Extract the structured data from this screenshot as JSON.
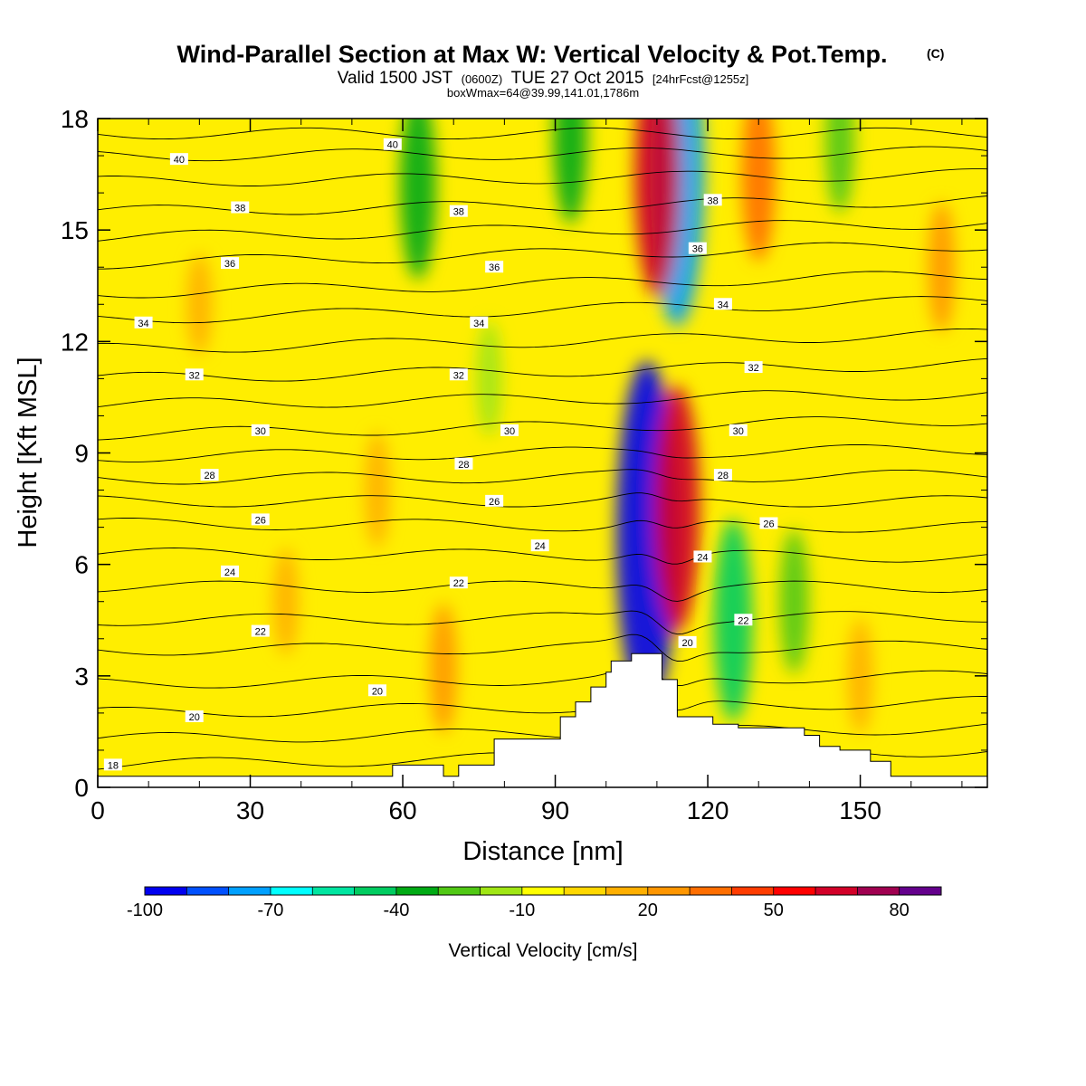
{
  "header": {
    "title": "Wind-Parallel Section at Max W: Vertical Velocity & Pot.Temp.",
    "copyright": "(C)",
    "valid_prefix": "Valid 1500 JST",
    "valid_zulu": "(0600Z)",
    "valid_date": "TUE 27 Oct 2015",
    "forecast": "[24hrFcst@1255z]",
    "box_info": "boxWmax=64@39.99,141.01,1786m"
  },
  "chart_data": {
    "type": "heatmap",
    "title": "Wind-Parallel Section at Max W: Vertical Velocity & Pot.Temp.",
    "xlabel": "Distance [nm]",
    "ylabel": "Height [Kft MSL]",
    "xlim": [
      0,
      175
    ],
    "ylim": [
      0,
      18
    ],
    "x_ticks": [
      0,
      30,
      60,
      90,
      120,
      150
    ],
    "y_ticks": [
      0,
      3,
      6,
      9,
      12,
      15,
      18
    ],
    "x_tick_labels": [
      "0",
      "30",
      "60",
      "90",
      "120",
      "150"
    ],
    "y_tick_labels": [
      "0",
      "3",
      "6",
      "9",
      "12",
      "15",
      "18"
    ],
    "colorbar": {
      "title": "Vertical Velocity [cm/s]",
      "min": -100,
      "max": 90,
      "step": 10,
      "labels": [
        "-100",
        "-70",
        "-40",
        "-10",
        "20",
        "50",
        "80"
      ],
      "label_values": [
        -100,
        -70,
        -40,
        -10,
        20,
        50,
        80
      ],
      "colors": [
        "#0000f0",
        "#0050ff",
        "#00a0ff",
        "#00ffff",
        "#00e5a0",
        "#00cc60",
        "#00aa14",
        "#50c814",
        "#a0e614",
        "#ffff00",
        "#ffd700",
        "#ffaf00",
        "#ff9600",
        "#ff6e00",
        "#ff3c00",
        "#ff0000",
        "#d20028",
        "#a00050",
        "#64008c"
      ]
    },
    "terrain": {
      "x": [
        0,
        58,
        58,
        68,
        68,
        71,
        71,
        78,
        78,
        91,
        91,
        94,
        94,
        97,
        97,
        100,
        100,
        101,
        101,
        105,
        105,
        111,
        111,
        114,
        114,
        121,
        121,
        126,
        126,
        139,
        139,
        142,
        142,
        146,
        146,
        152,
        152,
        156,
        156,
        175
      ],
      "y": [
        0.3,
        0.3,
        0.6,
        0.6,
        0.3,
        0.3,
        0.6,
        0.6,
        1.3,
        1.3,
        1.9,
        1.9,
        2.3,
        2.3,
        2.7,
        2.7,
        3.1,
        3.1,
        3.4,
        3.4,
        3.6,
        3.6,
        2.9,
        2.9,
        1.9,
        1.9,
        1.7,
        1.7,
        1.6,
        1.6,
        1.4,
        1.4,
        1.1,
        1.1,
        1.0,
        1.0,
        0.7,
        0.7,
        0.3,
        0.3
      ]
    },
    "w_features": [
      {
        "x": 108,
        "y": 6.8,
        "w": -95
      },
      {
        "x": 114,
        "y": 7.5,
        "w": 60
      },
      {
        "x": 114,
        "y": 16.5,
        "w": -80
      },
      {
        "x": 110,
        "y": 16.5,
        "w": 60
      },
      {
        "x": 63,
        "y": 16.2,
        "w": -40
      },
      {
        "x": 93,
        "y": 17.5,
        "w": -35
      },
      {
        "x": 125,
        "y": 4.5,
        "w": -45
      },
      {
        "x": 137,
        "y": 5.0,
        "w": -25
      },
      {
        "x": 146,
        "y": 17.4,
        "w": -25
      },
      {
        "x": 77,
        "y": 11,
        "w": -15
      },
      {
        "x": 68,
        "y": 3.2,
        "w": 20
      },
      {
        "x": 130,
        "y": 16.5,
        "w": 35
      },
      {
        "x": 166,
        "y": 14,
        "w": 20
      },
      {
        "x": 55,
        "y": 8,
        "w": 15
      },
      {
        "x": 37,
        "y": 5,
        "w": 12
      },
      {
        "x": 20,
        "y": 13,
        "w": 10
      },
      {
        "x": 150,
        "y": 3,
        "w": 15
      }
    ],
    "theta_lines": [
      {
        "value": 18,
        "y_left": 0.6,
        "y_right": 1.0
      },
      {
        "value": 19,
        "y_left": 1.3,
        "y_right": 1.6
      },
      {
        "value": 20,
        "y_left": 2.0,
        "y_right": 2.3
      },
      {
        "value": 21,
        "y_left": 2.8,
        "y_right": 3.0
      },
      {
        "value": 22,
        "y_left": 3.7,
        "y_right": 3.8
      },
      {
        "value": 23,
        "y_left": 4.5,
        "y_right": 4.6
      },
      {
        "value": 24,
        "y_left": 5.4,
        "y_right": 5.4
      },
      {
        "value": 25,
        "y_left": 6.3,
        "y_right": 6.2
      },
      {
        "value": 26,
        "y_left": 7.1,
        "y_right": 7.0
      },
      {
        "value": 27,
        "y_left": 7.7,
        "y_right": 7.7
      },
      {
        "value": 28,
        "y_left": 8.3,
        "y_right": 8.4
      },
      {
        "value": 29,
        "y_left": 8.9,
        "y_right": 9.1
      },
      {
        "value": 30,
        "y_left": 9.5,
        "y_right": 9.9
      },
      {
        "value": 31,
        "y_left": 10.3,
        "y_right": 10.6
      },
      {
        "value": 32,
        "y_left": 11.0,
        "y_right": 11.4
      },
      {
        "value": 33,
        "y_left": 11.8,
        "y_right": 12.2
      },
      {
        "value": 34,
        "y_left": 12.6,
        "y_right": 13.1
      },
      {
        "value": 35,
        "y_left": 13.3,
        "y_right": 13.8
      },
      {
        "value": 36,
        "y_left": 14.1,
        "y_right": 14.6
      },
      {
        "value": 37,
        "y_left": 14.8,
        "y_right": 15.2
      },
      {
        "value": 38,
        "y_left": 15.5,
        "y_right": 15.8
      },
      {
        "value": 39,
        "y_left": 16.3,
        "y_right": 16.5
      },
      {
        "value": 40,
        "y_left": 17.0,
        "y_right": 17.1
      },
      {
        "value": 41,
        "y_left": 17.6,
        "y_right": 17.6
      }
    ],
    "theta_labels": [
      {
        "text": "40",
        "x": 16,
        "y": 16.9
      },
      {
        "text": "38",
        "x": 28,
        "y": 15.6
      },
      {
        "text": "36",
        "x": 26,
        "y": 14.1
      },
      {
        "text": "34",
        "x": 9,
        "y": 12.5
      },
      {
        "text": "32",
        "x": 19,
        "y": 11.1
      },
      {
        "text": "30",
        "x": 32,
        "y": 9.6
      },
      {
        "text": "28",
        "x": 22,
        "y": 8.4
      },
      {
        "text": "26",
        "x": 32,
        "y": 7.2
      },
      {
        "text": "24",
        "x": 26,
        "y": 5.8
      },
      {
        "text": "22",
        "x": 32,
        "y": 4.2
      },
      {
        "text": "20",
        "x": 19,
        "y": 1.9
      },
      {
        "text": "18",
        "x": 3,
        "y": 0.6
      },
      {
        "text": "40",
        "x": 58,
        "y": 17.3
      },
      {
        "text": "38",
        "x": 71,
        "y": 15.5
      },
      {
        "text": "36",
        "x": 78,
        "y": 14.0
      },
      {
        "text": "34",
        "x": 75,
        "y": 12.5
      },
      {
        "text": "32",
        "x": 71,
        "y": 11.1
      },
      {
        "text": "30",
        "x": 81,
        "y": 9.6
      },
      {
        "text": "28",
        "x": 72,
        "y": 8.7
      },
      {
        "text": "26",
        "x": 78,
        "y": 7.7
      },
      {
        "text": "24",
        "x": 87,
        "y": 6.5
      },
      {
        "text": "22",
        "x": 71,
        "y": 5.5
      },
      {
        "text": "20",
        "x": 55,
        "y": 2.6
      },
      {
        "text": "38",
        "x": 121,
        "y": 15.8
      },
      {
        "text": "36",
        "x": 118,
        "y": 14.5
      },
      {
        "text": "34",
        "x": 123,
        "y": 13.0
      },
      {
        "text": "32",
        "x": 129,
        "y": 11.3
      },
      {
        "text": "30",
        "x": 126,
        "y": 9.6
      },
      {
        "text": "28",
        "x": 123,
        "y": 8.4
      },
      {
        "text": "26",
        "x": 132,
        "y": 7.1
      },
      {
        "text": "24",
        "x": 119,
        "y": 6.2
      },
      {
        "text": "22",
        "x": 127,
        "y": 4.5
      },
      {
        "text": "20",
        "x": 116,
        "y": 3.9
      }
    ]
  }
}
